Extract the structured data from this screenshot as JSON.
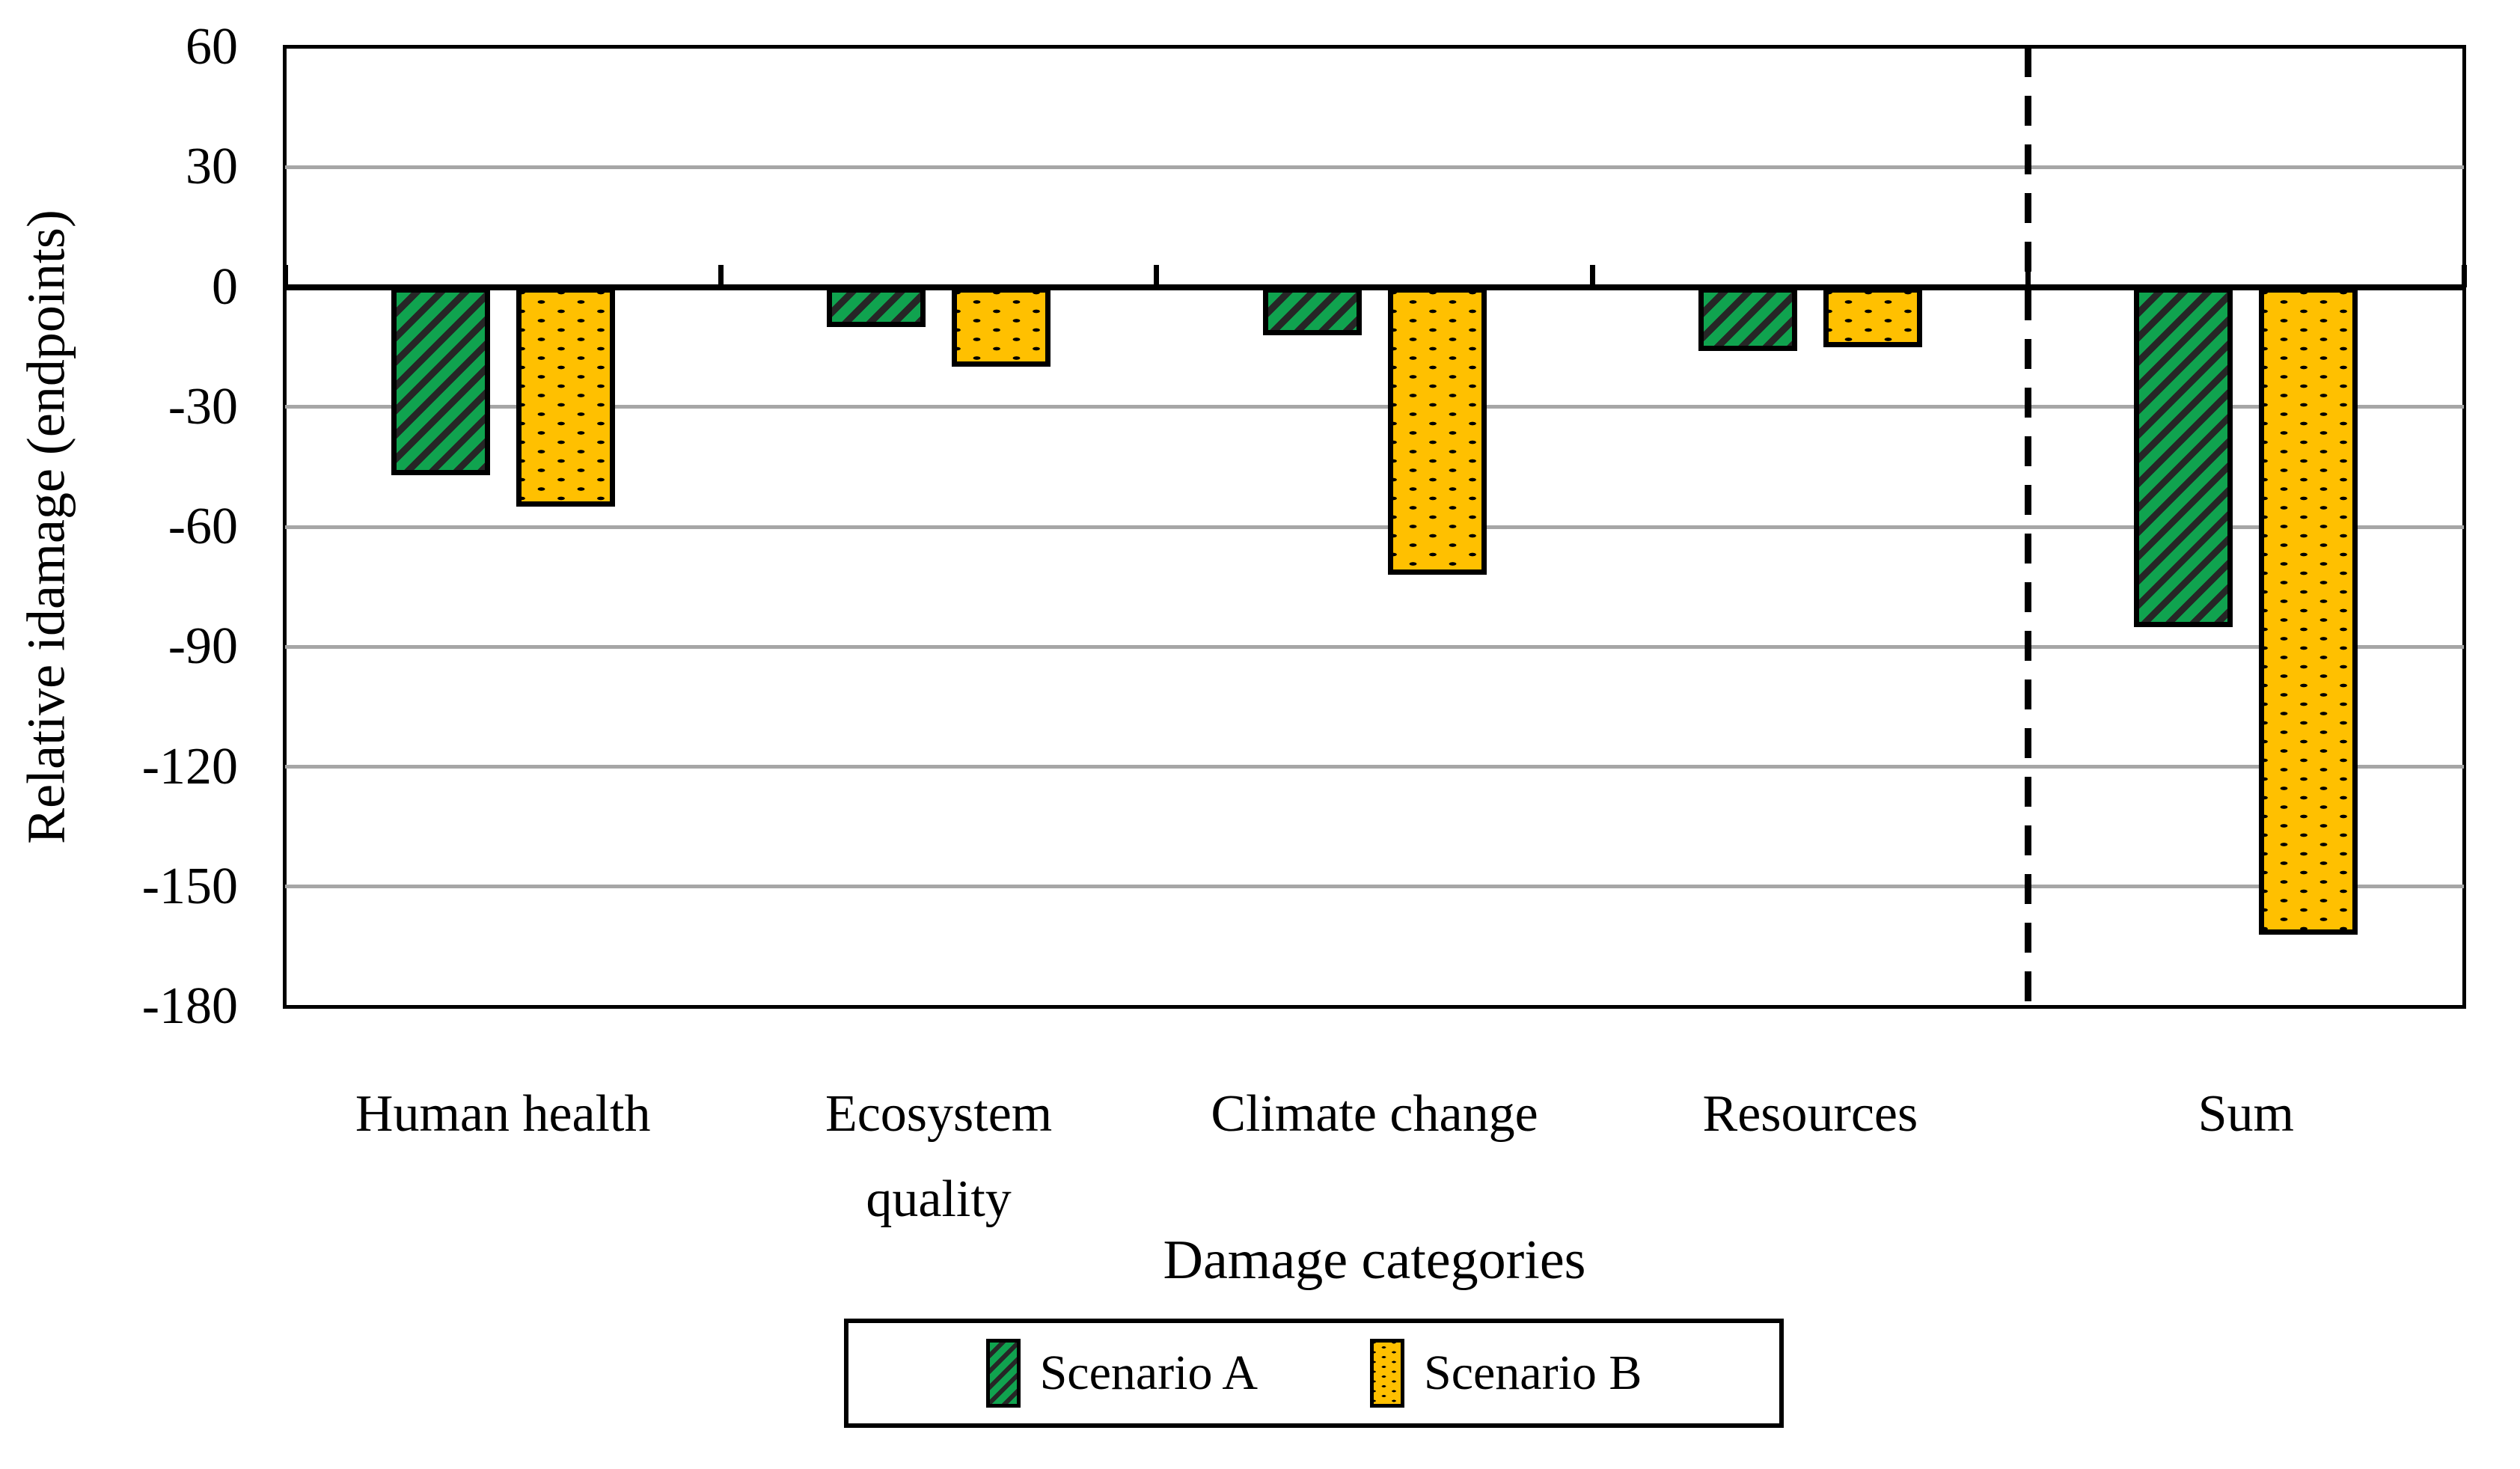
{
  "chart_data": {
    "type": "bar",
    "title": "",
    "categories": [
      "Human health",
      "Ecosystem quality",
      "Climate change",
      "Resources",
      "Sum"
    ],
    "x_tick_lines": [
      [
        "Human health"
      ],
      [
        "Ecosystem",
        "quality"
      ],
      [
        "Climate change"
      ],
      [
        "Resources"
      ],
      [
        "Sum"
      ]
    ],
    "series": [
      {
        "name": "Scenario A",
        "values": [
          -47,
          -10,
          -12,
          -16,
          -85
        ],
        "fill": "#10A34F",
        "pattern": "diagonal-stripes",
        "pattern_color": "#262626"
      },
      {
        "name": "Scenario B",
        "values": [
          -55,
          -20,
          -72,
          -15,
          -162
        ],
        "fill": "#FFC000",
        "pattern": "dots",
        "pattern_color": "#000000"
      }
    ],
    "xlabel": "Damage categories",
    "ylabel": "Relative idamage (endpoints)",
    "ylim": [
      -180,
      60
    ],
    "y_ticks": [
      60,
      30,
      0,
      -30,
      -60,
      -90,
      -120,
      -150,
      -180
    ],
    "grid": "horizontal",
    "gridline_color": "#A6A6A6",
    "axis_color": "#000000",
    "separator": {
      "style": "dashed-vertical",
      "before_category": "Sum"
    },
    "legend_position": "bottom"
  }
}
